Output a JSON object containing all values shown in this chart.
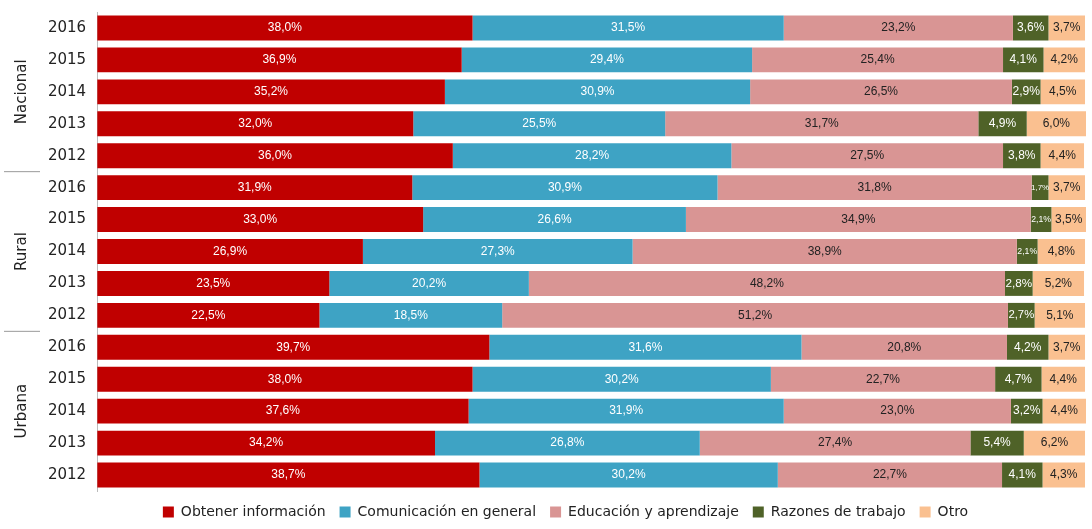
{
  "chart_data": {
    "type": "bar",
    "orientation": "horizontal",
    "stacked": true,
    "legend": "bottom",
    "grid": false,
    "categories": [
      "2016",
      "2015",
      "2014",
      "2013",
      "2012",
      "2016",
      "2015",
      "2014",
      "2013",
      "2012",
      "2016",
      "2015",
      "2014",
      "2013",
      "2012"
    ],
    "annotations": [
      "Nacional",
      "Rural",
      "Urbana"
    ],
    "series": [
      {
        "name": "Obtener información",
        "color": "#c00000",
        "values": [
          38.0,
          36.9,
          35.2,
          32.0,
          36.0,
          31.9,
          33.0,
          26.9,
          23.5,
          22.5,
          39.7,
          38.0,
          37.6,
          34.2,
          38.7
        ],
        "value_labels": [
          "38,0%",
          "36,9%",
          "35,2%",
          "32,0%",
          "36,0%",
          "31,9%",
          "33,0%",
          "26,9%",
          "23,5%",
          "22,5%",
          "39,7%",
          "38,0%",
          "37,6%",
          "34,2%",
          "38,7%"
        ]
      },
      {
        "name": "Comunicación en general",
        "color": "#3ea3c4",
        "values": [
          31.5,
          29.4,
          30.9,
          25.5,
          28.2,
          30.9,
          26.6,
          27.3,
          20.2,
          18.5,
          31.6,
          30.2,
          31.9,
          26.8,
          30.2
        ],
        "value_labels": [
          "31,5%",
          "29,4%",
          "30,9%",
          "25,5%",
          "28,2%",
          "30,9%",
          "26,6%",
          "27,3%",
          "20,2%",
          "18,5%",
          "31,6%",
          "30,2%",
          "31,9%",
          "26,8%",
          "30,2%"
        ]
      },
      {
        "name": "Educación y aprendizaje",
        "color": "#d99594",
        "values": [
          23.2,
          25.4,
          26.5,
          31.7,
          27.5,
          31.8,
          34.9,
          38.9,
          48.2,
          51.2,
          20.8,
          22.7,
          23.0,
          27.4,
          22.7
        ],
        "value_labels": [
          "23,2%",
          "25,4%",
          "26,5%",
          "31,7%",
          "27,5%",
          "31,8%",
          "34,9%",
          "38,9%",
          "48,2%",
          "51,2%",
          "20,8%",
          "22,7%",
          "23,0%",
          "27,4%",
          "22,7%"
        ]
      },
      {
        "name": "Razones de trabajo",
        "color": "#4f6228",
        "values": [
          3.6,
          4.1,
          2.9,
          4.9,
          3.8,
          1.7,
          2.1,
          2.1,
          2.8,
          2.7,
          4.2,
          4.7,
          3.2,
          5.4,
          4.1
        ],
        "value_labels": [
          "3,6%",
          "4,1%",
          "2,9%",
          "4,9%",
          "3,8%",
          "1,7%",
          "2,1%",
          "2,1%",
          "2,8%",
          "2,7%",
          "4,2%",
          "4,7%",
          "3,2%",
          "5,4%",
          "4,1%"
        ]
      },
      {
        "name": "Otro",
        "color": "#fac090",
        "values": [
          3.7,
          4.2,
          4.5,
          6.0,
          4.4,
          3.7,
          3.5,
          4.8,
          5.2,
          5.1,
          3.7,
          4.4,
          4.4,
          6.2,
          4.3
        ],
        "value_labels": [
          "3,7%",
          "4,2%",
          "4,5%",
          "6,0%",
          "4,4%",
          "3,7%",
          "3,5%",
          "4,8%",
          "5,2%",
          "5,1%",
          "3,7%",
          "4,4%",
          "4,4%",
          "6,2%",
          "4,3%"
        ]
      }
    ]
  }
}
